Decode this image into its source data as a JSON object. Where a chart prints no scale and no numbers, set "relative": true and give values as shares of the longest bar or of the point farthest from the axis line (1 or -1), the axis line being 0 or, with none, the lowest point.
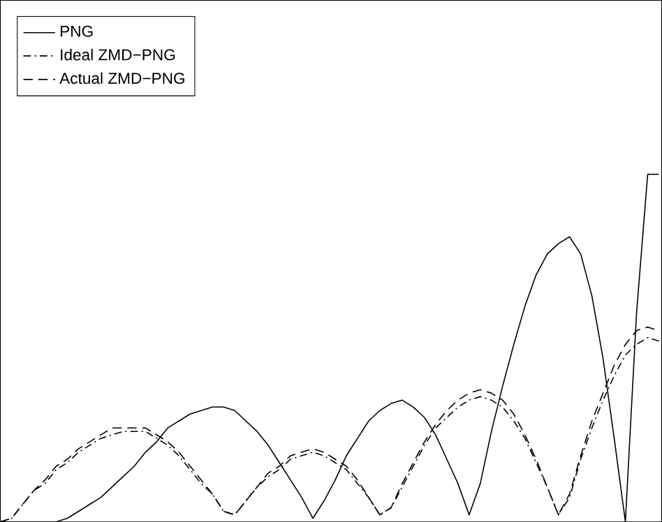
{
  "chart_data": {
    "type": "line",
    "relative": true,
    "legend": "top left",
    "marker": "none",
    "categories": [
      null,
      null,
      null,
      null,
      null,
      null,
      null,
      null,
      null,
      null,
      null,
      null,
      null,
      null,
      null,
      null,
      null,
      null,
      null,
      null,
      null,
      null,
      null,
      null,
      null,
      null,
      null,
      null,
      null,
      null,
      null,
      null,
      null,
      null,
      null,
      null,
      null,
      null,
      null,
      null,
      null,
      null,
      null,
      null,
      null,
      null,
      null,
      null,
      null,
      null,
      null,
      null,
      null,
      null,
      null,
      null,
      null,
      null,
      null,
      null
    ],
    "series": [
      {
        "name": "PNG",
        "color": "#000000",
        "line_style": "solid",
        "values": [
          0,
          0,
          0,
          0,
          0,
          0,
          0.01,
          0.03,
          0.05,
          0.07,
          0.1,
          0.13,
          0.16,
          0.2,
          0.23,
          0.27,
          0.29,
          0.31,
          0.32,
          0.33,
          0.33,
          0.32,
          0.29,
          0.26,
          0.22,
          0.17,
          0.12,
          0.07,
          0.01,
          0.06,
          0.12,
          0.19,
          0.24,
          0.29,
          0.32,
          0.34,
          0.35,
          0.33,
          0.3,
          0.25,
          0.18,
          0.11,
          0.02,
          0.11,
          0.26,
          0.39,
          0.51,
          0.62,
          0.71,
          0.77,
          0.8,
          0.82,
          0.77,
          0.65,
          0.47,
          0.24,
          0,
          0.6,
          1,
          1
        ]
      },
      {
        "name": "Ideal ZMD−PNG",
        "color": "#000000",
        "line_style": "dashdot",
        "values": [
          0,
          0.01,
          0.05,
          0.09,
          0.11,
          0.15,
          0.17,
          0.2,
          0.22,
          0.24,
          0.25,
          0.26,
          0.26,
          0.26,
          0.24,
          0.22,
          0.19,
          0.15,
          0.11,
          0.08,
          0.03,
          0.02,
          0.06,
          0.1,
          0.13,
          0.15,
          0.18,
          0.19,
          0.2,
          0.19,
          0.17,
          0.15,
          0.11,
          0.07,
          0.02,
          0.04,
          0.1,
          0.16,
          0.22,
          0.27,
          0.3,
          0.33,
          0.35,
          0.36,
          0.35,
          0.33,
          0.29,
          0.24,
          0.17,
          0.1,
          0.02,
          0.07,
          0.18,
          0.27,
          0.35,
          0.42,
          0.48,
          0.51,
          0.53,
          0.52
        ]
      },
      {
        "name": "Actual ZMD−PNG",
        "color": "#000000",
        "line_style": "dashed",
        "values": [
          0,
          0.01,
          0.05,
          0.09,
          0.12,
          0.16,
          0.18,
          0.21,
          0.23,
          0.25,
          0.27,
          0.27,
          0.27,
          0.27,
          0.25,
          0.23,
          0.2,
          0.16,
          0.12,
          0.08,
          0.03,
          0.02,
          0.06,
          0.1,
          0.14,
          0.16,
          0.19,
          0.2,
          0.21,
          0.2,
          0.18,
          0.16,
          0.12,
          0.07,
          0.02,
          0.04,
          0.11,
          0.17,
          0.23,
          0.28,
          0.32,
          0.35,
          0.37,
          0.38,
          0.37,
          0.35,
          0.31,
          0.25,
          0.18,
          0.1,
          0.02,
          0.08,
          0.19,
          0.29,
          0.37,
          0.45,
          0.51,
          0.55,
          0.56,
          0.55
        ]
      }
    ]
  }
}
